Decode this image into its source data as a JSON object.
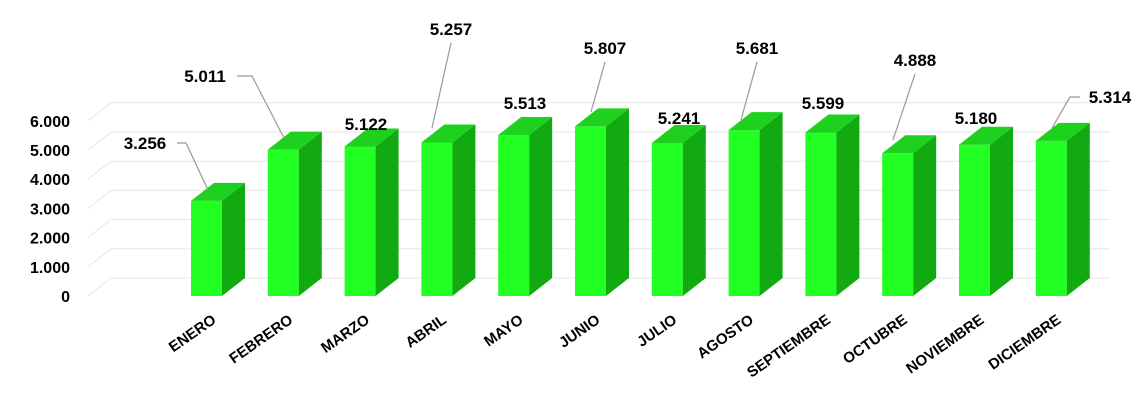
{
  "chart_data": {
    "type": "bar",
    "style": "3d-column",
    "categories": [
      "ENERO",
      "FEBRERO",
      "MARZO",
      "ABRIL",
      "MAYO",
      "JUNIO",
      "JULIO",
      "AGOSTO",
      "SEPTIEMBRE",
      "OCTUBRE",
      "NOVIEMBRE",
      "DICIEMBRE"
    ],
    "values": [
      3256,
      5011,
      5122,
      5257,
      5513,
      5807,
      5241,
      5681,
      5599,
      4888,
      5180,
      5314
    ],
    "value_labels": [
      "3.256",
      "5.011",
      "5.122",
      "5.257",
      "5.513",
      "5.807",
      "5.241",
      "5.681",
      "5.599",
      "4.888",
      "5.180",
      "5.314"
    ],
    "y_ticks": [
      "0",
      "1.000",
      "2.000",
      "3.000",
      "4.000",
      "5.000",
      "6.000"
    ],
    "y_tick_values": [
      0,
      1000,
      2000,
      3000,
      4000,
      5000,
      6000
    ],
    "ylim": [
      0,
      6000
    ],
    "grid": true,
    "legend": "none",
    "colors": {
      "front": "#22ff22",
      "side": "#11aa11",
      "top": "#1ed11e",
      "leader": "#999999"
    }
  }
}
